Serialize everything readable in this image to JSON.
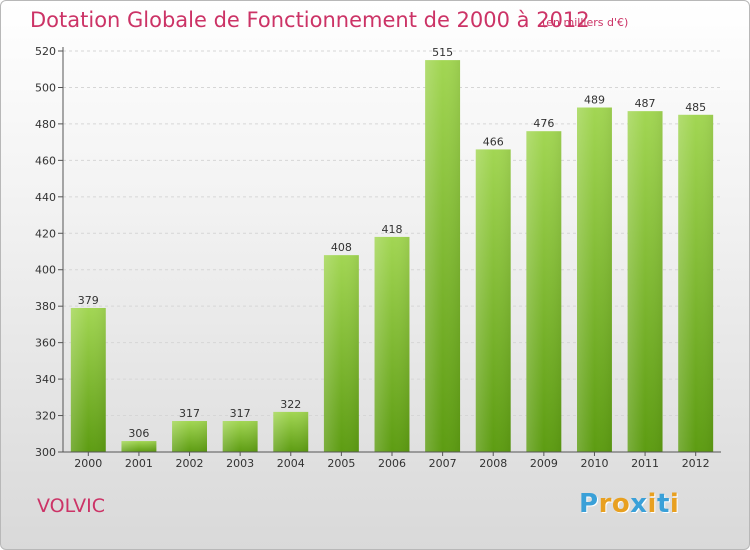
{
  "title": "Dotation Globale de Fonctionnement de 2000 à 2012",
  "subtitle": "(en milliers d'€)",
  "commune": "VOLVIC",
  "logo": {
    "letters": [
      "P",
      "r",
      "o",
      "x",
      "i",
      "t",
      "i"
    ],
    "colors": [
      "#3aa0d8",
      "#e8a020",
      "#e8a020",
      "#3aa0d8",
      "#e8a020",
      "#3aa0d8",
      "#e8a020"
    ]
  },
  "colors": {
    "title": "#cc3366",
    "bar_top": "#a2d653",
    "bar_bottom": "#5d9c12",
    "grid": "#d6d6d6"
  },
  "chart_data": {
    "type": "bar",
    "title": "Dotation Globale de Fonctionnement de 2000 à 2012",
    "subtitle": "(en milliers d'€)",
    "categories": [
      "2000",
      "2001",
      "2002",
      "2003",
      "2004",
      "2005",
      "2006",
      "2007",
      "2008",
      "2009",
      "2010",
      "2011",
      "2012"
    ],
    "values": [
      379,
      306,
      317,
      317,
      322,
      408,
      418,
      515,
      466,
      476,
      489,
      487,
      485
    ],
    "ylim": [
      300,
      520
    ],
    "yticks": [
      300,
      320,
      340,
      360,
      380,
      400,
      420,
      440,
      460,
      480,
      500,
      520
    ],
    "grid": true,
    "data_labels": true
  }
}
